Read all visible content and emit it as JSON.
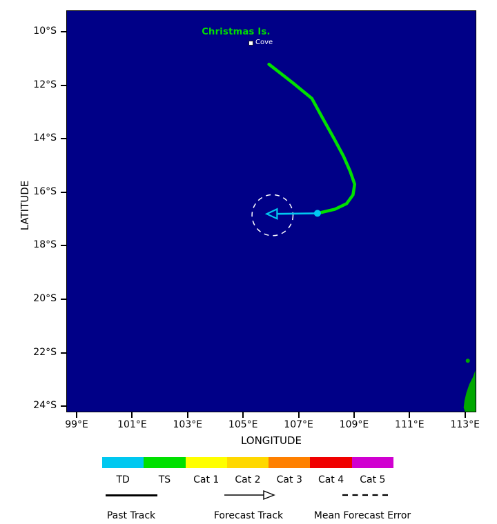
{
  "map": {
    "ocean_color": "#000087",
    "land_color": "#00a800",
    "axis": {
      "x_label": "LONGITUDE",
      "y_label": "LATITUDE",
      "x_ticks": [
        "99°E",
        "101°E",
        "103°E",
        "105°E",
        "107°E",
        "109°E",
        "111°E",
        "113°E"
      ],
      "y_ticks": [
        "10°S",
        "12°S",
        "14°S",
        "16°S",
        "18°S",
        "20°S",
        "22°S",
        "24°S"
      ]
    },
    "annotations": {
      "island": "Christmas Is.",
      "island_label_color": "#00e000",
      "cove": "Cove"
    }
  },
  "chart_data": {
    "type": "track_map",
    "lon_range": [
      98.65,
      113.38
    ],
    "lat_range": [
      9.23,
      24.2
    ],
    "past_track": {
      "label": "Past Track",
      "color": "#00e000",
      "points": [
        [
          105.93,
          11.22
        ],
        [
          106.8,
          11.92
        ],
        [
          107.48,
          12.5
        ],
        [
          107.88,
          13.26
        ],
        [
          108.27,
          13.98
        ],
        [
          108.62,
          14.66
        ],
        [
          108.86,
          15.22
        ],
        [
          109.02,
          15.7
        ],
        [
          108.96,
          16.1
        ],
        [
          108.73,
          16.43
        ],
        [
          108.3,
          16.64
        ],
        [
          107.68,
          16.79
        ]
      ]
    },
    "current_position": [
      107.68,
      16.79
    ],
    "forecast_track": {
      "label": "Forecast Track",
      "color": "#00c8f0",
      "points": [
        [
          107.68,
          16.79
        ],
        [
          105.85,
          16.81
        ]
      ]
    },
    "mean_forecast_error": {
      "label": "Mean Forecast Error",
      "center": [
        106.06,
        16.86
      ],
      "radius_deg": 0.74
    },
    "land": [
      [
        [
          113.37,
          22.66
        ],
        [
          113.28,
          22.92
        ],
        [
          113.15,
          23.18
        ],
        [
          113.05,
          23.49
        ],
        [
          112.98,
          23.79
        ],
        [
          112.95,
          24.05
        ],
        [
          113.0,
          24.2
        ],
        [
          113.38,
          24.2
        ]
      ]
    ],
    "islets": [
      [
        113.1,
        22.3
      ]
    ]
  },
  "legend": {
    "categories": [
      {
        "label": "TD",
        "color": "#00c8f0"
      },
      {
        "label": "TS",
        "color": "#00e000"
      },
      {
        "label": "Cat 1",
        "color": "#ffff00"
      },
      {
        "label": "Cat 2",
        "color": "#ffd800"
      },
      {
        "label": "Cat 3",
        "color": "#ff8000"
      },
      {
        "label": "Cat 4",
        "color": "#f00000"
      },
      {
        "label": "Cat 5",
        "color": "#d000d0"
      }
    ],
    "items": [
      "Past Track",
      "Forecast Track",
      "Mean Forecast Error"
    ]
  }
}
